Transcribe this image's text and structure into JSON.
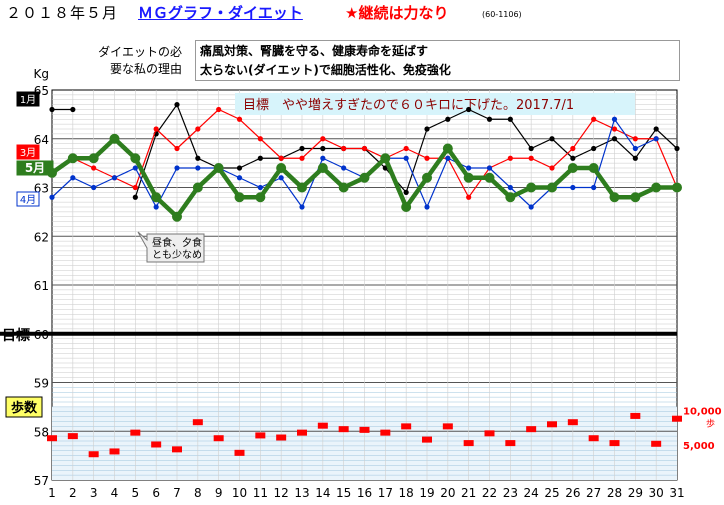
{
  "header": {
    "title": "２０１８年５月",
    "link": "ＭＧグラフ・ダイエット",
    "motto": "★継続は力なり",
    "code": "(60-1106)"
  },
  "reason": {
    "label_line1": "ダイエットの必",
    "label_line2": "要な私の理由",
    "text_line1": "痛風対策、腎臓を守る、健康寿命を延ばす",
    "text_line2": "太らない(ダイエット)で細胞活性化、免疫強化"
  },
  "chart_data": {
    "type": "line",
    "title": "",
    "yunit": "Kg",
    "ylim": [
      57,
      65
    ],
    "yticks": [
      57,
      58,
      59,
      60,
      61,
      62,
      63,
      64,
      65
    ],
    "x": [
      1,
      2,
      3,
      4,
      5,
      6,
      7,
      8,
      9,
      10,
      11,
      12,
      13,
      14,
      15,
      16,
      17,
      18,
      19,
      20,
      21,
      22,
      23,
      24,
      25,
      26,
      27,
      28,
      29,
      30,
      31
    ],
    "grid": true,
    "goal": {
      "label": "目標",
      "value": 60
    },
    "goal_note": "目標　やや増えすぎたので６０キロに下げた。2017.7/1",
    "annotation": {
      "line1": "昼食、夕食",
      "line2": "とも少なめ",
      "day": 7
    },
    "series": [
      {
        "name": "1月",
        "color": "#000000",
        "values": [
          64.6,
          64.6,
          null,
          null,
          62.8,
          64.1,
          64.7,
          63.6,
          63.4,
          63.4,
          63.6,
          63.6,
          63.8,
          63.8,
          63.8,
          63.8,
          63.4,
          62.9,
          64.2,
          64.4,
          64.6,
          64.4,
          64.4,
          63.8,
          64.0,
          63.6,
          63.8,
          64.0,
          63.6,
          64.2,
          63.8
        ]
      },
      {
        "name": "3月",
        "color": "#ff0000",
        "values": [
          63.3,
          63.6,
          63.4,
          63.2,
          63.0,
          64.2,
          63.8,
          64.2,
          64.6,
          64.4,
          64.0,
          63.6,
          63.6,
          64.0,
          63.8,
          63.8,
          63.6,
          63.8,
          63.6,
          63.6,
          62.8,
          63.4,
          63.6,
          63.6,
          63.4,
          63.8,
          64.4,
          64.2,
          64.0,
          64.0,
          63.0
        ]
      },
      {
        "name": "4月",
        "color": "#0033cc",
        "values": [
          62.8,
          63.2,
          63.0,
          63.2,
          63.4,
          62.6,
          63.4,
          63.4,
          63.4,
          63.2,
          63.0,
          63.2,
          62.6,
          63.6,
          63.4,
          63.2,
          63.6,
          63.6,
          62.6,
          63.6,
          63.4,
          63.4,
          63.0,
          62.6,
          63.0,
          63.0,
          63.0,
          64.4,
          63.8,
          64.0,
          null
        ]
      },
      {
        "name": "5月",
        "color": "#2e7d1e",
        "values": [
          63.3,
          63.6,
          63.6,
          64.0,
          63.6,
          62.8,
          62.4,
          63.0,
          63.4,
          62.8,
          62.8,
          63.4,
          63.0,
          63.4,
          63.0,
          63.2,
          63.6,
          62.6,
          63.2,
          63.8,
          63.2,
          63.2,
          62.8,
          63.0,
          63.0,
          63.4,
          63.4,
          62.8,
          62.8,
          63.0,
          63.0
        ]
      }
    ],
    "steps": {
      "label": "歩数",
      "unit": "歩",
      "ylim": [
        0,
        14000
      ],
      "yticks": [
        5000,
        10000
      ],
      "yticklabels": [
        "5,000",
        "10,000"
      ],
      "values": [
        6000,
        6300,
        3700,
        4100,
        6800,
        5100,
        4400,
        8300,
        6000,
        3900,
        6400,
        6100,
        6800,
        7800,
        7300,
        7200,
        6800,
        7700,
        5800,
        7700,
        5300,
        6700,
        5300,
        7300,
        8000,
        8300,
        6000,
        5300,
        9200,
        5200,
        8800
      ]
    }
  }
}
